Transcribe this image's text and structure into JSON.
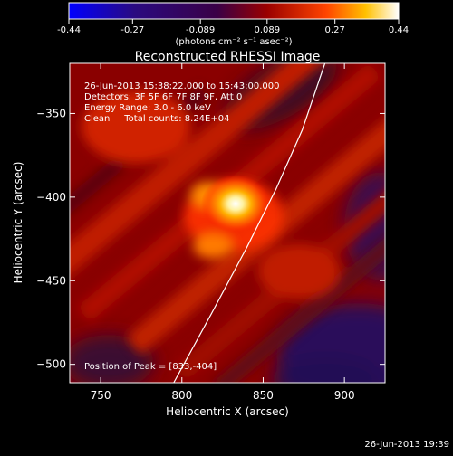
{
  "colorbar": {
    "tick_labels": [
      "-0.44",
      "-0.27",
      "-0.089",
      "0.089",
      "0.27",
      "0.44"
    ],
    "tick_values": [
      -0.44,
      -0.27,
      -0.089,
      0.089,
      0.27,
      0.44
    ],
    "range": [
      -0.44,
      0.44
    ],
    "units_label": "(photons cm⁻² s⁻¹ asec⁻²)"
  },
  "chart_data": {
    "type": "heatmap",
    "title": "Reconstructed RHESSI Image",
    "xlabel": "Heliocentric X (arcsec)",
    "ylabel": "Heliocentric Y (arcsec)",
    "xlim": [
      731,
      925
    ],
    "ylim": [
      -511,
      -320
    ],
    "xticks": [
      750,
      800,
      850,
      900
    ],
    "yticks": [
      -350,
      -400,
      -450,
      -500
    ],
    "xtick_labels": [
      "750",
      "800",
      "850",
      "900"
    ],
    "ytick_labels": [
      "−350",
      "−400",
      "−450",
      "−500"
    ],
    "peak": [
      833,
      -404
    ],
    "limb_curve": [
      [
        795,
        -511
      ],
      [
        818,
        -470
      ],
      [
        840,
        -430
      ],
      [
        858,
        -395
      ],
      [
        874,
        -360
      ],
      [
        888,
        -320
      ]
    ],
    "annotations": {
      "time_range": "26-Jun-2013 15:38:22.000 to 15:43:00.000",
      "detectors": "Detectors: 3F 5F 6F 7F 8F 9F, Att 0",
      "energy_range": "Energy Range: 3.0 - 6.0 keV",
      "clean_counts": "Clean     Total counts: 8.24E+04",
      "peak_position": "Position of Peak = [833,-404]"
    }
  },
  "footer": {
    "timestamp": "26-Jun-2013 19:39"
  }
}
